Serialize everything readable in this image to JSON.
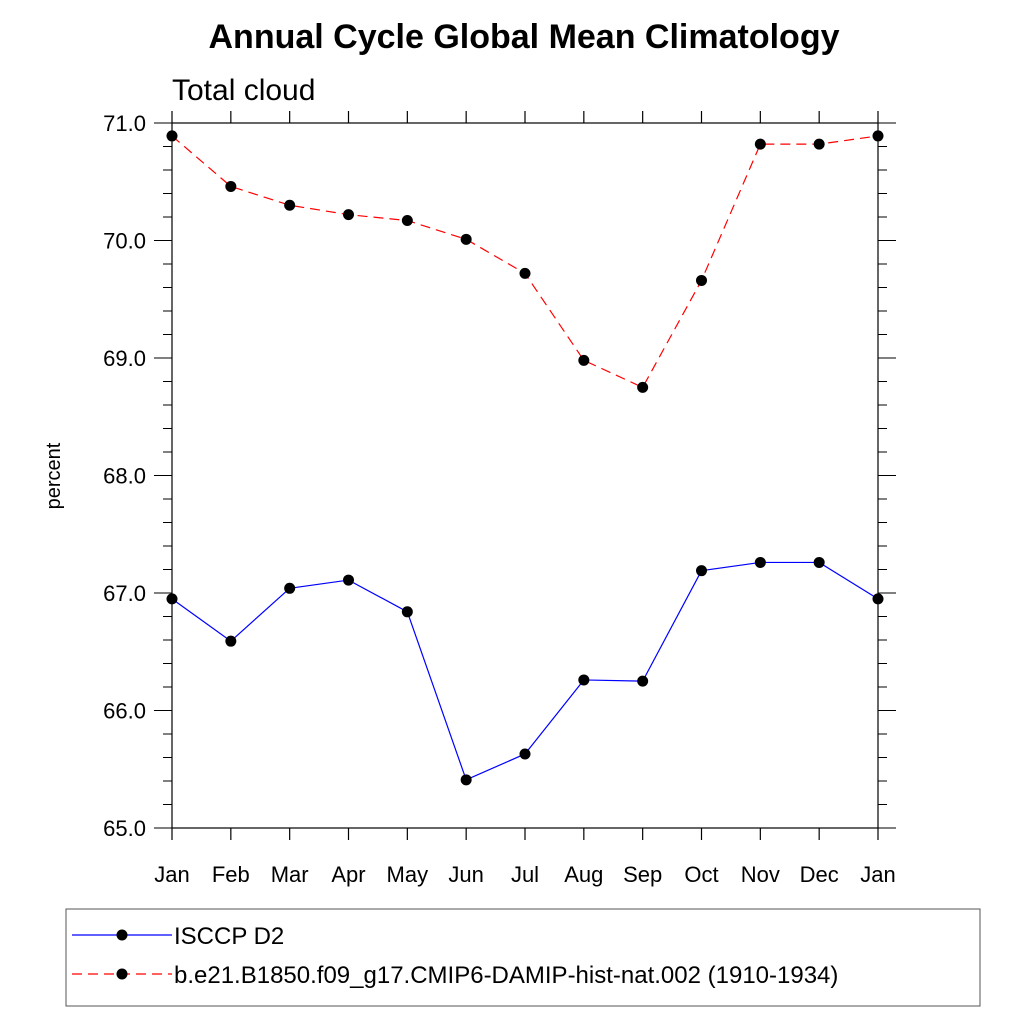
{
  "chart_data": {
    "type": "line",
    "title": "Annual Cycle Global Mean Climatology",
    "subtitle": "Total cloud",
    "xlabel": "",
    "ylabel": "percent",
    "categories": [
      "Jan",
      "Feb",
      "Mar",
      "Apr",
      "May",
      "Jun",
      "Jul",
      "Aug",
      "Sep",
      "Oct",
      "Nov",
      "Dec",
      "Jan"
    ],
    "ylim": [
      65.0,
      71.0
    ],
    "yticks": [
      "65.0",
      "66.0",
      "67.0",
      "68.0",
      "69.0",
      "70.0",
      "71.0"
    ],
    "grid": false,
    "legend_placement": "bottom",
    "series": [
      {
        "name": "ISCCP D2",
        "color": "#0000ff",
        "line_style": "solid",
        "marker": "filled-circle",
        "values": [
          66.95,
          66.59,
          67.04,
          67.11,
          66.84,
          65.41,
          65.63,
          66.26,
          66.25,
          67.19,
          67.26,
          67.26,
          66.95
        ]
      },
      {
        "name": "b.e21.B1850.f09_g17.CMIP6-DAMIP-hist-nat.002 (1910-1934)",
        "color": "#ff0000",
        "line_style": "dashed",
        "marker": "filled-circle",
        "values": [
          70.89,
          70.46,
          70.3,
          70.22,
          70.17,
          70.01,
          69.72,
          68.98,
          68.75,
          69.66,
          70.82,
          70.82,
          70.89
        ]
      }
    ]
  }
}
